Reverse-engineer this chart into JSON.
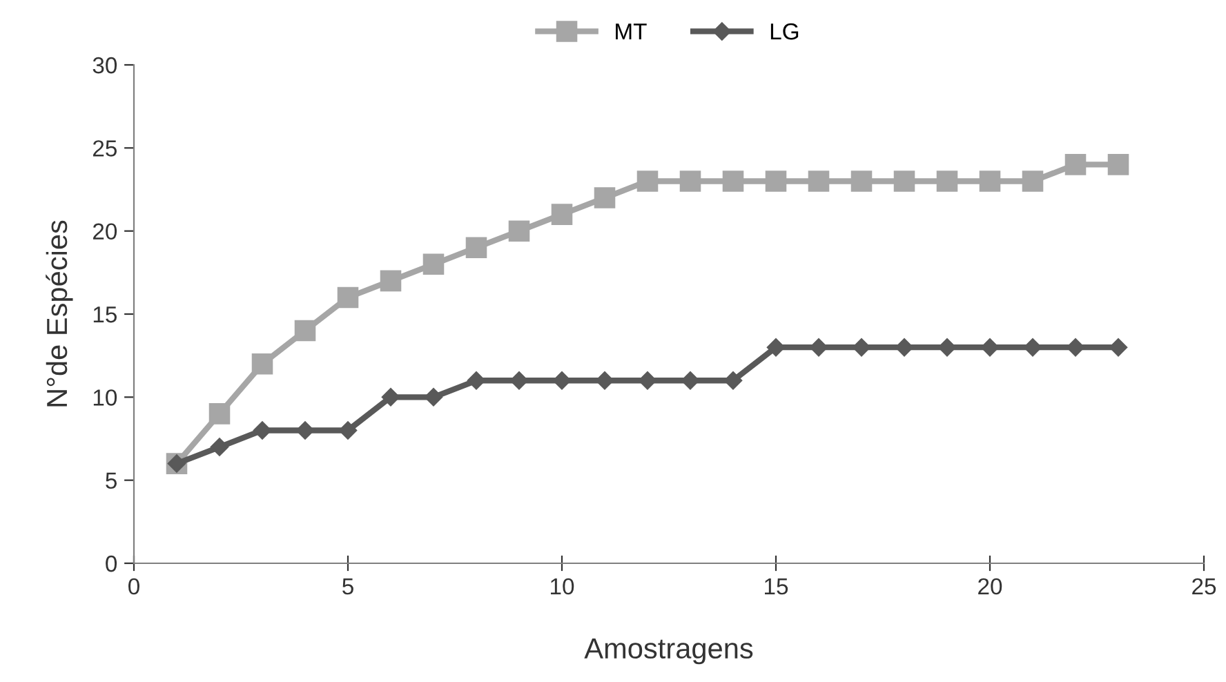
{
  "chart_data": {
    "type": "line",
    "xlabel": "Amostragens",
    "ylabel": "N°de Espécies",
    "x": [
      1,
      2,
      3,
      4,
      5,
      6,
      7,
      8,
      9,
      10,
      11,
      12,
      13,
      14,
      15,
      16,
      17,
      18,
      19,
      20,
      21,
      22,
      23
    ],
    "series": [
      {
        "name": "MT",
        "color": "#a6a6a6",
        "marker": "square",
        "values": [
          6,
          9,
          12,
          14,
          16,
          17,
          18,
          19,
          20,
          21,
          22,
          23,
          23,
          23,
          23,
          23,
          23,
          23,
          23,
          23,
          23,
          24,
          24
        ]
      },
      {
        "name": "LG",
        "color": "#595959",
        "marker": "diamond",
        "values": [
          6,
          7,
          8,
          8,
          8,
          10,
          10,
          11,
          11,
          11,
          11,
          11,
          11,
          11,
          13,
          13,
          13,
          13,
          13,
          13,
          13,
          13,
          13
        ]
      }
    ],
    "xlim": [
      0,
      25
    ],
    "xticks": [
      0,
      5,
      10,
      15,
      20,
      25
    ],
    "ylim": [
      0,
      30
    ],
    "yticks": [
      0,
      5,
      10,
      15,
      20,
      25,
      30
    ],
    "grid": false,
    "legend": "top",
    "line_style": "solid"
  }
}
